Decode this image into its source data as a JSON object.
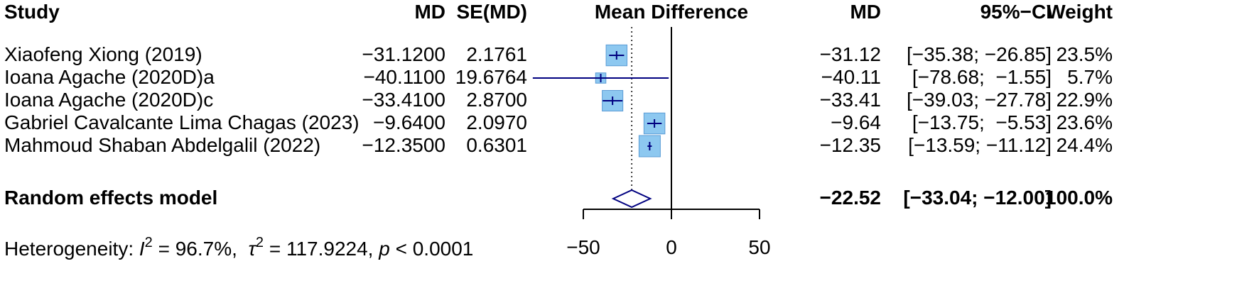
{
  "chart_data": {
    "type": "forest",
    "title": "",
    "xlabel": "",
    "columns": {
      "study": "Study",
      "md_input": "MD",
      "se_input": "SE(MD)",
      "plot": "Mean Difference",
      "md": "MD",
      "ci": "95%−CI",
      "weight": "Weight"
    },
    "studies": [
      {
        "name": "Xiaofeng Xiong (2019)",
        "md_text": "−31.1200",
        "se_text": "2.1761",
        "md_out": "−31.12",
        "ci_text": "[−35.38; −26.85]",
        "weight_text": "23.5%",
        "md": -31.12,
        "lower": -35.38,
        "upper": -26.85,
        "weight": 23.5
      },
      {
        "name": "Ioana Agache (2020D)a",
        "md_text": "−40.1100",
        "se_text": "19.6764",
        "md_out": "−40.11",
        "ci_text": "[−78.68;  −1.55]",
        "weight_text": "5.7%",
        "md": -40.11,
        "lower": -78.68,
        "upper": -1.55,
        "weight": 5.7
      },
      {
        "name": "Ioana Agache (2020D)c",
        "md_text": "−33.4100",
        "se_text": "2.8700",
        "md_out": "−33.41",
        "ci_text": "[−39.03; −27.78]",
        "weight_text": "22.9%",
        "md": -33.41,
        "lower": -39.03,
        "upper": -27.78,
        "weight": 22.9
      },
      {
        "name": "Gabriel Cavalcante Lima Chagas (2023)",
        "md_text": "−9.6400",
        "se_text": "2.0970",
        "md_out": "−9.64",
        "ci_text": "[−13.75;  −5.53]",
        "weight_text": "23.6%",
        "md": -9.64,
        "lower": -13.75,
        "upper": -5.53,
        "weight": 23.6
      },
      {
        "name": "Mahmoud Shaban Abdelgalil (2022)",
        "md_text": "−12.3500",
        "se_text": "0.6301",
        "md_out": "−12.35",
        "ci_text": "[−13.59; −11.12]",
        "weight_text": "24.4%",
        "md": -12.35,
        "lower": -13.59,
        "upper": -11.12,
        "weight": 24.4
      }
    ],
    "pooled": {
      "label": "Random effects model",
      "md_out": "−22.52",
      "ci_text": "[−33.04; −12.00]",
      "weight_text": "100.0%",
      "md": -22.52,
      "lower": -33.04,
      "upper": -12.0
    },
    "heterogeneity": {
      "prefix": "Heterogeneity: ",
      "i2_symbol": "I",
      "i2_value": " = 96.7%,  ",
      "tau2_symbol": "τ",
      "tau2_value": " = 117.9224, ",
      "p_symbol": "p",
      "p_value": " < 0.0001",
      "superscript": "2"
    },
    "axis": {
      "xlim": [
        -50,
        50
      ],
      "ticks": [
        -50,
        0,
        50
      ],
      "tick_labels": [
        "−50",
        "0",
        "50"
      ],
      "null_value": 0
    },
    "colors": {
      "box_fill": "#8DC8F0",
      "box_stroke": "#5A9BD5",
      "ci_line": "#000080",
      "diamond": "#000080",
      "pooled_line": "#000000",
      "text": "#000000"
    }
  }
}
